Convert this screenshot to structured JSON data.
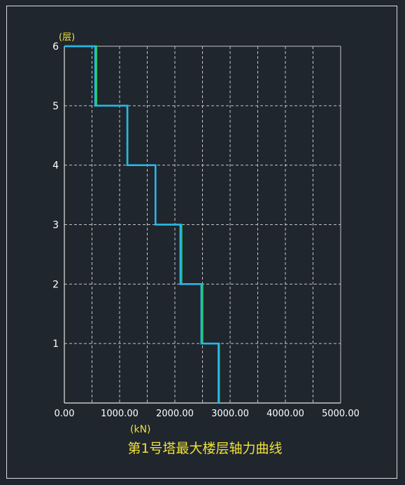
{
  "chart_data": {
    "type": "line",
    "title": "第1号塔最大楼层轴力曲线",
    "xlabel": "(kN)",
    "ylabel": "(层)",
    "xlim": [
      0,
      5000
    ],
    "ylim": [
      0,
      6
    ],
    "x_ticks": [
      "0.00",
      "1000.00",
      "2000.00",
      "3000.00",
      "4000.00",
      "5000.00"
    ],
    "x_tick_values": [
      0,
      1000,
      2000,
      3000,
      4000,
      5000
    ],
    "y_ticks": [
      "1",
      "2",
      "3",
      "4",
      "5",
      "6"
    ],
    "y_tick_values": [
      1,
      2,
      3,
      4,
      5,
      6
    ],
    "grid": true,
    "series": [
      {
        "color": "#22cc44",
        "step_values": [
          {
            "floor_top": 6,
            "floor_bottom": 5,
            "value": 580
          },
          {
            "floor_top": 5,
            "floor_bottom": 4,
            "value": 1140
          },
          {
            "floor_top": 4,
            "floor_bottom": 3,
            "value": 1650
          },
          {
            "floor_top": 3,
            "floor_bottom": 2,
            "value": 2120
          },
          {
            "floor_top": 2,
            "floor_bottom": 1,
            "value": 2500
          },
          {
            "floor_top": 1,
            "floor_bottom": 0,
            "value": 2800
          }
        ]
      },
      {
        "color": "#29b6e8",
        "step_values": [
          {
            "floor_top": 6,
            "floor_bottom": 5,
            "value": 560
          },
          {
            "floor_top": 5,
            "floor_bottom": 4,
            "value": 1140
          },
          {
            "floor_top": 4,
            "floor_bottom": 3,
            "value": 1650
          },
          {
            "floor_top": 3,
            "floor_bottom": 2,
            "value": 2100
          },
          {
            "floor_top": 2,
            "floor_bottom": 1,
            "value": 2480
          },
          {
            "floor_top": 1,
            "floor_bottom": 0,
            "value": 2790
          }
        ]
      }
    ]
  },
  "colors": {
    "background": "#1f262d",
    "frame": "#d8dde2",
    "axis": "#e6e6e6",
    "grid": "#bfc4c8",
    "tick_text": "#ffffff",
    "label_text": "#f0e03a",
    "title_text": "#f0e03a"
  }
}
